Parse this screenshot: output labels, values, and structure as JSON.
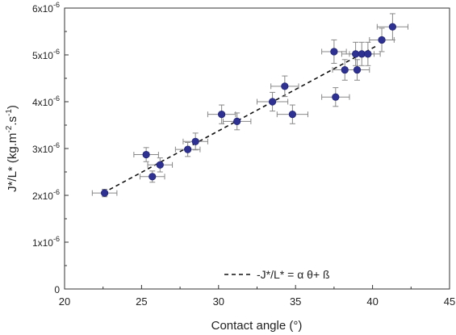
{
  "chart_data": {
    "type": "scatter",
    "xlabel": "Contact angle (°)",
    "ylabel_main": "J*/L* (kg.m",
    "ylabel_sup1": "-2",
    "ylabel_mid": ".s",
    "ylabel_sup2": "-1",
    "ylabel_end": ")",
    "xlim": [
      20,
      45
    ],
    "ylim": [
      0,
      6e-06
    ],
    "x_ticks": [
      20,
      25,
      30,
      35,
      40,
      45
    ],
    "x_tick_labels": [
      "20",
      "25",
      "30",
      "35",
      "40",
      "45"
    ],
    "y_ticks": [
      0,
      1e-06,
      2e-06,
      3e-06,
      4e-06,
      5e-06,
      6e-06
    ],
    "y_tick_labels": [
      {
        "base": "0",
        "exp": ""
      },
      {
        "base": "1x10",
        "exp": "-6"
      },
      {
        "base": "2x10",
        "exp": "-6"
      },
      {
        "base": "3x10",
        "exp": "-6"
      },
      {
        "base": "4x10",
        "exp": "-6"
      },
      {
        "base": "5x10",
        "exp": "-6"
      },
      {
        "base": "6x10",
        "exp": "-6"
      }
    ],
    "grid": false,
    "marker_color": "#2e3192",
    "error_bar_color": "#888888",
    "legend": {
      "position": "bottom-center",
      "label": "-J*/L* = α θ+ ß"
    },
    "fit_line": {
      "x": [
        22.5,
        40.3
      ],
      "y": [
        2.05e-06,
        5.2e-06
      ]
    },
    "points": [
      {
        "x": 22.6,
        "y": 2.05e-06,
        "xerr": 0.8,
        "yerr": 8e-08
      },
      {
        "x": 25.3,
        "y": 2.87e-06,
        "xerr": 0.8,
        "yerr": 1.5e-07
      },
      {
        "x": 25.7,
        "y": 2.4e-06,
        "xerr": 0.8,
        "yerr": 1.2e-07
      },
      {
        "x": 26.2,
        "y": 2.65e-06,
        "xerr": 0.8,
        "yerr": 1.5e-07
      },
      {
        "x": 28.0,
        "y": 2.98e-06,
        "xerr": 0.8,
        "yerr": 1.5e-07
      },
      {
        "x": 28.5,
        "y": 3.15e-06,
        "xerr": 0.8,
        "yerr": 1.8e-07
      },
      {
        "x": 30.2,
        "y": 3.73e-06,
        "xerr": 0.9,
        "yerr": 2e-07
      },
      {
        "x": 31.2,
        "y": 3.58e-06,
        "xerr": 0.9,
        "yerr": 1.8e-07
      },
      {
        "x": 33.5,
        "y": 4e-06,
        "xerr": 1.0,
        "yerr": 2e-07
      },
      {
        "x": 34.3,
        "y": 4.33e-06,
        "xerr": 0.9,
        "yerr": 2.2e-07
      },
      {
        "x": 34.8,
        "y": 3.73e-06,
        "xerr": 1.0,
        "yerr": 2e-07
      },
      {
        "x": 37.5,
        "y": 5.07e-06,
        "xerr": 0.8,
        "yerr": 2.5e-07
      },
      {
        "x": 37.6,
        "y": 4.1e-06,
        "xerr": 0.9,
        "yerr": 2e-07
      },
      {
        "x": 38.2,
        "y": 4.68e-06,
        "xerr": 0.8,
        "yerr": 2.2e-07
      },
      {
        "x": 38.9,
        "y": 5.02e-06,
        "xerr": 0.9,
        "yerr": 2.5e-07
      },
      {
        "x": 39.0,
        "y": 4.68e-06,
        "xerr": 0.8,
        "yerr": 2.2e-07
      },
      {
        "x": 39.3,
        "y": 5.02e-06,
        "xerr": 0.8,
        "yerr": 2.5e-07
      },
      {
        "x": 39.7,
        "y": 5.02e-06,
        "xerr": 0.8,
        "yerr": 2.5e-07
      },
      {
        "x": 40.6,
        "y": 5.32e-06,
        "xerr": 0.8,
        "yerr": 2.5e-07
      },
      {
        "x": 41.3,
        "y": 5.6e-06,
        "xerr": 1.0,
        "yerr": 2.8e-07
      }
    ]
  }
}
